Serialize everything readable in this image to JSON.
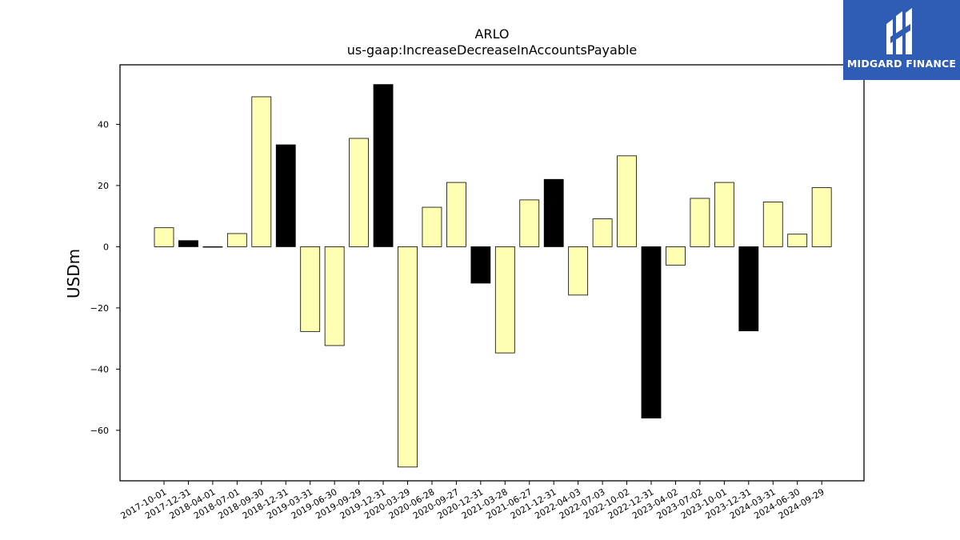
{
  "brand": {
    "name": "MIDGARD FINANCE",
    "bg_color": "#2f5db5"
  },
  "chart_data": {
    "type": "bar",
    "title": "ARLO",
    "subtitle": "us-gaap:IncreaseDecreaseInAccountsPayable",
    "xlabel": "",
    "ylabel": "USDm",
    "ylim": [
      -76,
      60
    ],
    "yticks": [
      -60,
      -40,
      -20,
      0,
      20,
      40
    ],
    "grid": false,
    "legend": "none",
    "colors": {
      "quarterly": "#ffffb3",
      "annual": "#000000",
      "edge": "#000000"
    },
    "categories": [
      "2017-10-01",
      "2017-12-31",
      "2018-04-01",
      "2018-07-01",
      "2018-09-30",
      "2018-12-31",
      "2019-03-31",
      "2019-06-30",
      "2019-09-29",
      "2019-12-31",
      "2020-03-29",
      "2020-06-28",
      "2020-09-27",
      "2020-12-31",
      "2021-03-28",
      "2021-06-27",
      "2021-12-31",
      "2022-04-03",
      "2022-07-03",
      "2022-10-02",
      "2022-12-31",
      "2023-04-02",
      "2023-07-02",
      "2023-10-01",
      "2023-12-31",
      "2024-03-31",
      "2024-06-30",
      "2024-09-29"
    ],
    "values": [
      6.2,
      2.0,
      0.0,
      4.3,
      49.0,
      33.3,
      -27.7,
      -32.3,
      35.4,
      53.0,
      -72.0,
      12.9,
      21.0,
      -11.9,
      -34.7,
      15.3,
      22.0,
      -15.8,
      9.1,
      29.7,
      -56.0,
      -6.0,
      15.8,
      21.0,
      -27.5,
      14.6,
      4.1,
      19.3
    ],
    "annual_flags": [
      false,
      true,
      false,
      false,
      false,
      true,
      false,
      false,
      false,
      true,
      false,
      false,
      false,
      true,
      false,
      false,
      true,
      false,
      false,
      false,
      true,
      false,
      false,
      false,
      true,
      false,
      false,
      false
    ]
  }
}
